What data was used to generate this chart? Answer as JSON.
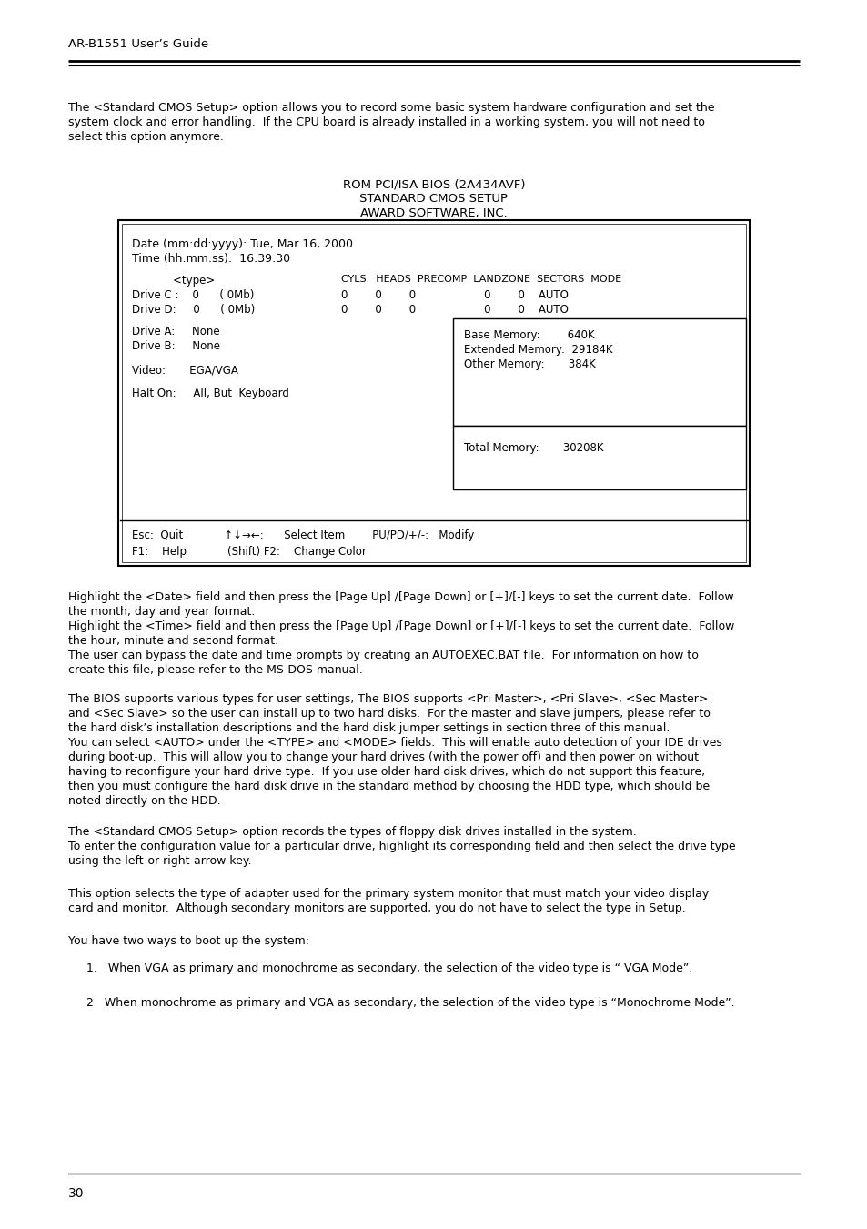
{
  "header_title": "AR-B1551 User’s Guide",
  "page_number": "30",
  "bg_color": "#ffffff",
  "body_text_1_lines": [
    "The <Standard CMOS Setup> option allows you to record some basic system hardware configuration and set the",
    "system clock and error handling.  If the CPU board is already installed in a working system, you will not need to",
    "select this option anymore."
  ],
  "bios_title_1": "ROM PCI/ISA BIOS (2A434AVF)",
  "bios_title_2": "STANDARD CMOS SETUP",
  "bios_title_3": "AWARD SOFTWARE, INC.",
  "para1_lines": [
    "Highlight the <Date> field and then press the [Page Up] /[Page Down] or [+]/[-] keys to set the current date.  Follow",
    "the month, day and year format.",
    "Highlight the <Time> field and then press the [Page Up] /[Page Down] or [+]/[-] keys to set the current date.  Follow",
    "the hour, minute and second format.",
    "The user can bypass the date and time prompts by creating an AUTOEXEC.BAT file.  For information on how to",
    "create this file, please refer to the MS-DOS manual."
  ],
  "para2_lines": [
    "The BIOS supports various types for user settings, The BIOS supports <Pri Master>, <Pri Slave>, <Sec Master>",
    "and <Sec Slave> so the user can install up to two hard disks.  For the master and slave jumpers, please refer to",
    "the hard disk’s installation descriptions and the hard disk jumper settings in section three of this manual.",
    "You can select <AUTO> under the <TYPE> and <MODE> fields.  This will enable auto detection of your IDE drives",
    "during boot-up.  This will allow you to change your hard drives (with the power off) and then power on without",
    "having to reconfigure your hard drive type.  If you use older hard disk drives, which do not support this feature,",
    "then you must configure the hard disk drive in the standard method by choosing the HDD type, which should be",
    "noted directly on the HDD."
  ],
  "para3_lines": [
    "The <Standard CMOS Setup> option records the types of floppy disk drives installed in the system.",
    "To enter the configuration value for a particular drive, highlight its corresponding field and then select the drive type",
    "using the left-or right-arrow key."
  ],
  "para4_lines": [
    "This option selects the type of adapter used for the primary system monitor that must match your video display",
    "card and monitor.  Although secondary monitors are supported, you do not have to select the type in Setup."
  ],
  "para5": "You have two ways to boot up the system:",
  "bullet1": "1.   When VGA as primary and monochrome as secondary, the selection of the video type is “ VGA Mode”.",
  "bullet2": "2   When monochrome as primary and VGA as secondary, the selection of the video type is “Monochrome Mode”."
}
